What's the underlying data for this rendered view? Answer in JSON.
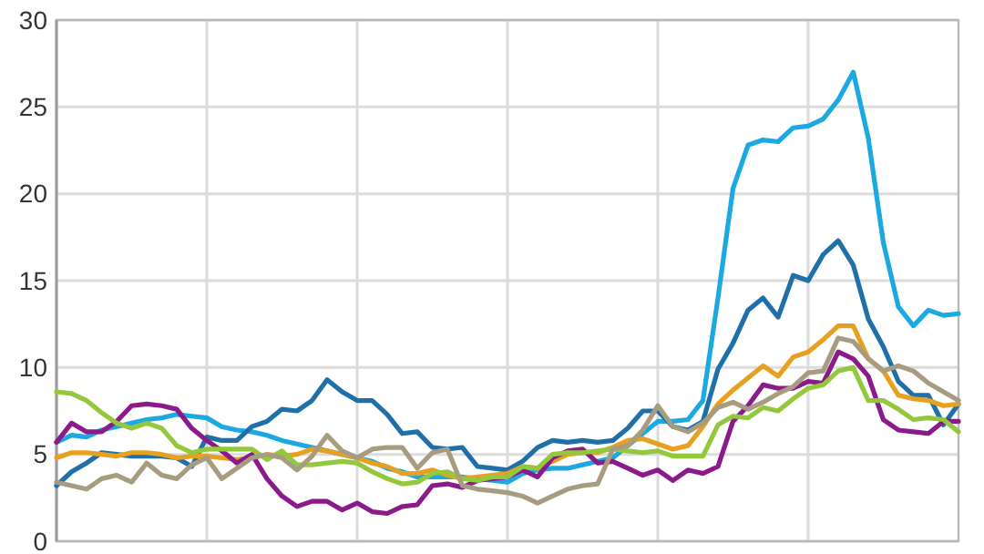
{
  "chart_data": {
    "type": "line",
    "categories": [
      null,
      null,
      null,
      null,
      null,
      null,
      null,
      null,
      null,
      null,
      null,
      null,
      null,
      null,
      null,
      null,
      null,
      null,
      null,
      null,
      null,
      null,
      null,
      null,
      null,
      null,
      null,
      null,
      null,
      null,
      null,
      null,
      null,
      null,
      null,
      null,
      null,
      null,
      null,
      null,
      null,
      null,
      null,
      null,
      null,
      null,
      null,
      null,
      null,
      null,
      null,
      null,
      null,
      null,
      null,
      null,
      null,
      null,
      null,
      null,
      null
    ],
    "ylim": [
      0,
      30
    ],
    "yticks": [
      0,
      5,
      10,
      15,
      20,
      25,
      30
    ],
    "grid": true,
    "marker": "none",
    "line_style": "solid",
    "series": [
      {
        "color": "#1ca8e0",
        "values": [
          5.7,
          6.1,
          6.0,
          6.4,
          6.6,
          6.8,
          7.0,
          7.1,
          7.3,
          7.2,
          7.1,
          6.6,
          6.4,
          6.3,
          6.1,
          5.8,
          5.6,
          5.4,
          5.2,
          5.0,
          4.8,
          4.6,
          4.2,
          4.0,
          3.7,
          3.7,
          3.7,
          3.7,
          3.6,
          3.5,
          3.4,
          3.9,
          4.1,
          4.2,
          4.2,
          4.4,
          4.6,
          4.8,
          5.5,
          6.2,
          6.9,
          6.9,
          7.0,
          8.1,
          14.0,
          20.3,
          22.8,
          23.1,
          23.0,
          23.8,
          23.9,
          24.3,
          25.4,
          27.0,
          23.2,
          17.2,
          13.5,
          12.4,
          13.3,
          13.0,
          13.1
        ]
      },
      {
        "color": "#1f6fa8",
        "values": [
          3.2,
          4.0,
          4.5,
          5.1,
          5.0,
          4.9,
          4.9,
          4.9,
          4.8,
          4.3,
          6.0,
          5.8,
          5.8,
          6.6,
          6.9,
          7.6,
          7.5,
          8.1,
          9.3,
          8.6,
          8.1,
          8.1,
          7.3,
          6.2,
          6.3,
          5.4,
          5.3,
          5.4,
          4.3,
          4.2,
          4.1,
          4.6,
          5.4,
          5.8,
          5.7,
          5.8,
          5.7,
          5.8,
          6.5,
          7.5,
          7.5,
          6.6,
          6.4,
          6.9,
          9.9,
          11.4,
          13.3,
          14.0,
          12.9,
          15.3,
          15.0,
          16.5,
          17.3,
          15.9,
          12.8,
          11.2,
          9.2,
          8.4,
          8.4,
          6.7,
          7.9
        ]
      },
      {
        "color": "#e8a020",
        "values": [
          4.8,
          5.1,
          5.1,
          5.0,
          4.9,
          5.1,
          5.1,
          5.0,
          4.8,
          4.9,
          4.9,
          4.8,
          4.7,
          4.8,
          5.0,
          4.9,
          5.0,
          5.3,
          5.2,
          5.0,
          4.8,
          4.5,
          4.3,
          3.9,
          3.9,
          4.1,
          3.8,
          3.6,
          3.7,
          3.8,
          3.9,
          4.3,
          4.2,
          4.6,
          5.0,
          5.1,
          5.1,
          5.4,
          5.8,
          5.9,
          5.6,
          5.3,
          5.5,
          6.6,
          7.9,
          8.7,
          9.4,
          10.1,
          9.5,
          10.6,
          10.9,
          11.6,
          12.4,
          12.4,
          10.5,
          9.8,
          8.4,
          8.2,
          8.1,
          7.8,
          7.9
        ]
      },
      {
        "color": "#8b1a8b",
        "values": [
          5.7,
          6.8,
          6.3,
          6.3,
          6.9,
          7.8,
          7.9,
          7.8,
          7.6,
          6.5,
          5.8,
          5.2,
          4.5,
          5.0,
          3.6,
          2.6,
          2.0,
          2.3,
          2.3,
          1.8,
          2.2,
          1.7,
          1.6,
          2.0,
          2.1,
          3.2,
          3.3,
          3.1,
          3.5,
          3.6,
          3.7,
          4.1,
          3.7,
          4.8,
          5.2,
          5.3,
          4.5,
          4.6,
          4.2,
          3.8,
          4.1,
          3.5,
          4.1,
          3.9,
          4.3,
          6.9,
          7.8,
          9.0,
          8.8,
          8.8,
          9.2,
          9.1,
          10.9,
          10.5,
          9.5,
          7.0,
          6.4,
          6.3,
          6.2,
          6.9,
          6.9
        ]
      },
      {
        "color": "#94c83c",
        "values": [
          8.6,
          8.5,
          8.1,
          7.4,
          6.8,
          6.5,
          6.8,
          6.5,
          5.5,
          5.1,
          5.3,
          5.3,
          5.3,
          5.3,
          4.7,
          5.2,
          4.4,
          4.4,
          4.5,
          4.6,
          4.5,
          4.0,
          3.6,
          3.3,
          3.4,
          3.9,
          4.0,
          3.6,
          3.5,
          3.7,
          3.7,
          4.3,
          4.2,
          5.0,
          5.1,
          5.1,
          5.2,
          5.3,
          5.2,
          5.1,
          5.2,
          4.9,
          4.9,
          4.9,
          6.7,
          7.2,
          7.1,
          7.7,
          7.5,
          8.2,
          8.8,
          9.0,
          9.8,
          10.0,
          8.1,
          8.1,
          7.6,
          7.0,
          7.1,
          7.0,
          6.3
        ]
      },
      {
        "color": "#a89c80",
        "values": [
          3.4,
          3.2,
          3.0,
          3.6,
          3.8,
          3.4,
          4.5,
          3.8,
          3.6,
          4.4,
          4.8,
          3.6,
          4.2,
          4.8,
          5.0,
          4.8,
          4.1,
          4.9,
          6.1,
          5.2,
          4.8,
          5.3,
          5.4,
          5.4,
          4.2,
          5.1,
          5.3,
          3.2,
          3.0,
          2.9,
          2.8,
          2.6,
          2.2,
          2.6,
          3.0,
          3.2,
          3.3,
          5.3,
          5.5,
          6.4,
          7.8,
          6.6,
          6.3,
          6.8,
          7.7,
          8.0,
          7.6,
          8.0,
          8.5,
          8.9,
          9.7,
          9.8,
          11.7,
          11.5,
          10.5,
          9.8,
          10.1,
          9.8,
          9.1,
          8.6,
          8.1
        ]
      }
    ]
  }
}
